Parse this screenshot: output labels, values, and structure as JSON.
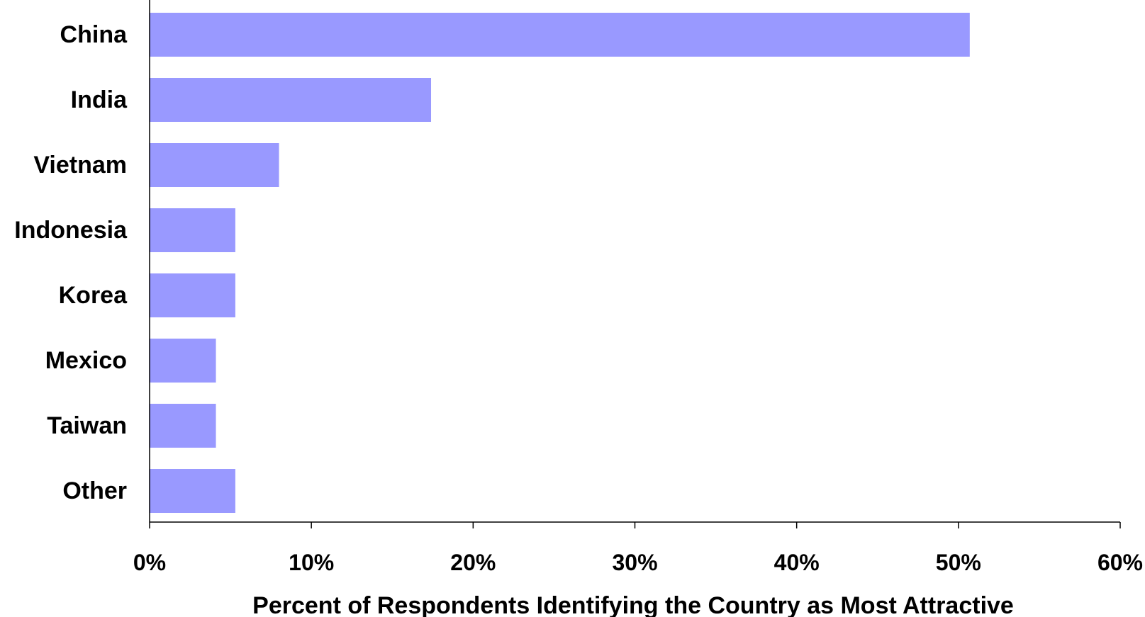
{
  "chart_data": {
    "type": "bar",
    "orientation": "horizontal",
    "title": "",
    "xlabel": "Percent of Respondents Identifying the Country as Most Attractive",
    "ylabel": "",
    "categories": [
      "China",
      "India",
      "Vietnam",
      "Indonesia",
      "Korea",
      "Mexico",
      "Taiwan",
      "Other"
    ],
    "values": [
      50.7,
      17.4,
      8.0,
      5.3,
      5.3,
      4.1,
      4.1,
      5.3
    ],
    "value_unit": "%",
    "xlim": [
      0,
      60
    ],
    "x_ticks": [
      0,
      10,
      20,
      30,
      40,
      50,
      60
    ],
    "x_tick_labels": [
      "0%",
      "10%",
      "20%",
      "30%",
      "40%",
      "50%",
      "60%"
    ],
    "grid": false,
    "legend": "none",
    "bar_color": "#9999FF"
  }
}
